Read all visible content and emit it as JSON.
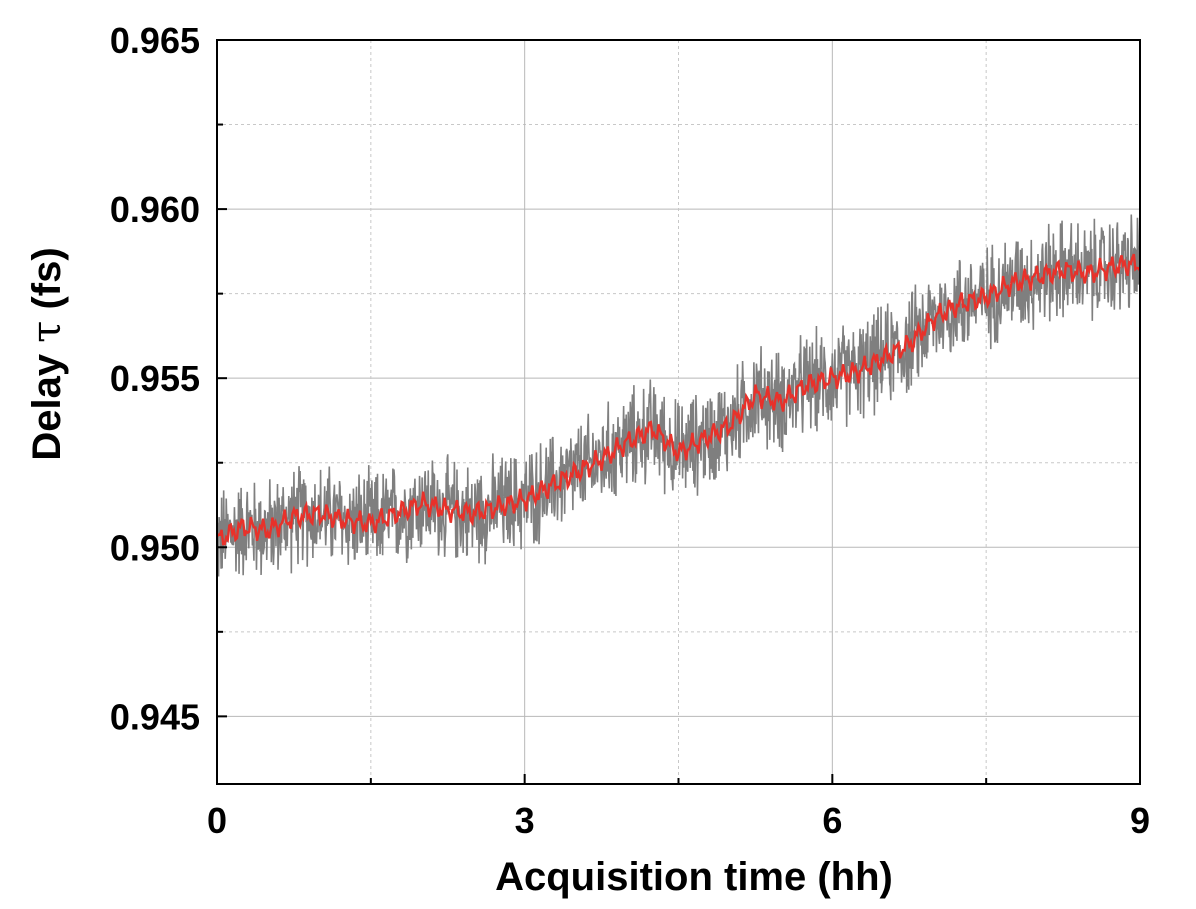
{
  "chart_data": {
    "type": "line",
    "title": "",
    "xlabel": "Acquisition time (hh)",
    "ylabel_main": "Delay ",
    "ylabel_symbol": "τ",
    "ylabel_unit": " (fs)",
    "xlim": [
      0,
      9
    ],
    "ylim": [
      0.943,
      0.965
    ],
    "x_ticks": [
      0,
      3,
      6,
      9
    ],
    "x_tick_labels": [
      "0",
      "3",
      "6",
      "9"
    ],
    "x_minor_ticks": [
      1.5,
      4.5,
      7.5
    ],
    "y_ticks": [
      0.945,
      0.95,
      0.955,
      0.96,
      0.965
    ],
    "y_tick_labels": [
      "0.945",
      "0.950",
      "0.955",
      "0.960",
      "0.965"
    ],
    "y_minor_ticks": [
      0.9475,
      0.9525,
      0.9575,
      0.9625
    ],
    "grid": true,
    "legend": "none",
    "series": [
      {
        "kind": "raw",
        "color": "#7f7f7f",
        "noise_amplitude": 0.0012,
        "x": [
          0,
          0.25,
          0.5,
          0.75,
          1.0,
          1.25,
          1.5,
          1.75,
          2.0,
          2.25,
          2.5,
          2.75,
          3.0,
          3.25,
          3.5,
          3.75,
          4.0,
          4.25,
          4.5,
          4.75,
          5.0,
          5.25,
          5.5,
          5.75,
          6.0,
          6.25,
          6.5,
          6.75,
          7.0,
          7.25,
          7.5,
          7.75,
          8.0,
          8.25,
          8.5,
          8.75,
          9.0
        ],
        "y": [
          0.9502,
          0.9506,
          0.9505,
          0.9509,
          0.951,
          0.9508,
          0.9507,
          0.951,
          0.9513,
          0.9511,
          0.951,
          0.9512,
          0.9514,
          0.9518,
          0.9522,
          0.9526,
          0.9531,
          0.9535,
          0.9528,
          0.9532,
          0.9536,
          0.9545,
          0.9543,
          0.9548,
          0.955,
          0.9552,
          0.9556,
          0.956,
          0.9568,
          0.9572,
          0.9574,
          0.9578,
          0.958,
          0.9582,
          0.9581,
          0.9583,
          0.9584
        ]
      },
      {
        "kind": "smoothed",
        "color": "#e8312a",
        "x": [
          0,
          0.25,
          0.5,
          0.75,
          1.0,
          1.25,
          1.5,
          1.75,
          2.0,
          2.25,
          2.5,
          2.75,
          3.0,
          3.25,
          3.5,
          3.75,
          4.0,
          4.25,
          4.5,
          4.75,
          5.0,
          5.25,
          5.5,
          5.75,
          6.0,
          6.25,
          6.5,
          6.75,
          7.0,
          7.25,
          7.5,
          7.75,
          8.0,
          8.25,
          8.5,
          8.75,
          9.0
        ],
        "y": [
          0.9502,
          0.9506,
          0.9505,
          0.9509,
          0.951,
          0.9508,
          0.9507,
          0.951,
          0.9513,
          0.9511,
          0.951,
          0.9512,
          0.9514,
          0.9518,
          0.9522,
          0.9526,
          0.9531,
          0.9535,
          0.9528,
          0.9532,
          0.9536,
          0.9545,
          0.9543,
          0.9548,
          0.955,
          0.9552,
          0.9556,
          0.956,
          0.9568,
          0.9572,
          0.9574,
          0.9578,
          0.958,
          0.9582,
          0.9581,
          0.9583,
          0.9584
        ]
      }
    ]
  }
}
